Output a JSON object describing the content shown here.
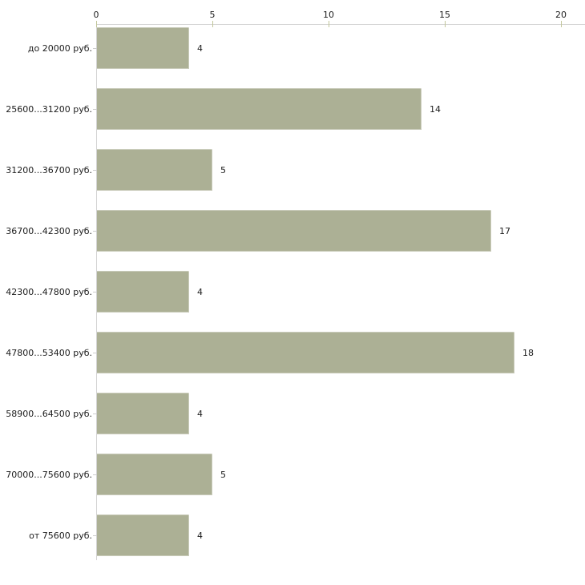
{
  "chart_data": {
    "type": "bar",
    "orientation": "horizontal",
    "title": "",
    "categories": [
      "до 20000 руб.",
      "25600...31200 руб.",
      "31200...36700 руб.",
      "36700...42300 руб.",
      "42300...47800 руб.",
      "47800...53400 руб.",
      "58900...64500 руб.",
      "70000...75600 руб.",
      "от 75600 руб."
    ],
    "values": [
      4,
      14,
      5,
      17,
      4,
      18,
      4,
      5,
      4
    ],
    "xlabel": "",
    "ylabel": "",
    "xlim": [
      0,
      20
    ],
    "x_ticks": [
      "0",
      "5",
      "10",
      "15",
      "20"
    ],
    "grid": false,
    "legend": null,
    "show_value_labels": true,
    "axis_position": "top",
    "colors": {
      "bar_fill": "#acb095",
      "bar_edge": "#c6c9b2",
      "axis_line": "#d4d4d4",
      "x_tick_mark": "#c2c69a",
      "y_tick_mark": "#cccccc",
      "label_text": "#1c1c1c",
      "background": "#ffffff"
    }
  }
}
